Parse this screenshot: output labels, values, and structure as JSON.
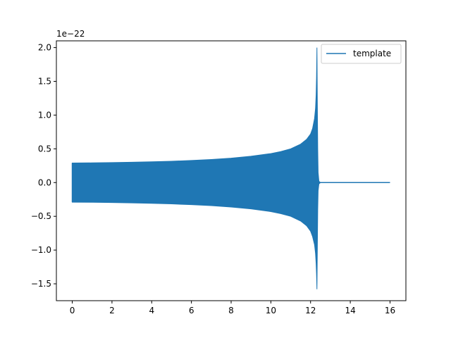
{
  "chart_data": {
    "type": "line",
    "title": "",
    "xlabel": "",
    "ylabel": "",
    "y_offset_label": "1e−22",
    "xlim": [
      -0.8,
      16.8
    ],
    "ylim": [
      -1.75,
      2.1
    ],
    "x_ticks": [
      {
        "value": 0,
        "label": "0"
      },
      {
        "value": 2,
        "label": "2"
      },
      {
        "value": 4,
        "label": "4"
      },
      {
        "value": 6,
        "label": "6"
      },
      {
        "value": 8,
        "label": "8"
      },
      {
        "value": 10,
        "label": "10"
      },
      {
        "value": 12,
        "label": "12"
      },
      {
        "value": 14,
        "label": "14"
      },
      {
        "value": 16,
        "label": "16"
      }
    ],
    "y_ticks": [
      {
        "value": -1.5,
        "label": "−1.5"
      },
      {
        "value": -1.0,
        "label": "−1.0"
      },
      {
        "value": -0.5,
        "label": "−0.5"
      },
      {
        "value": 0.0,
        "label": "0.0"
      },
      {
        "value": 0.5,
        "label": "0.5"
      },
      {
        "value": 1.0,
        "label": "1.0"
      },
      {
        "value": 1.5,
        "label": "1.5"
      },
      {
        "value": 2.0,
        "label": "2.0"
      }
    ],
    "grid": false,
    "legend_position": "top-right",
    "series": [
      {
        "name": "template",
        "color": "#1f77b4",
        "envelope_upper": [
          [
            0.0,
            0.29
          ],
          [
            1.0,
            0.292
          ],
          [
            2.0,
            0.296
          ],
          [
            3.0,
            0.301
          ],
          [
            4.0,
            0.308
          ],
          [
            5.0,
            0.316
          ],
          [
            6.0,
            0.327
          ],
          [
            7.0,
            0.342
          ],
          [
            8.0,
            0.362
          ],
          [
            9.0,
            0.39
          ],
          [
            10.0,
            0.43
          ],
          [
            10.5,
            0.46
          ],
          [
            11.0,
            0.5
          ],
          [
            11.5,
            0.57
          ],
          [
            11.8,
            0.64
          ],
          [
            12.0,
            0.72
          ],
          [
            12.1,
            0.8
          ],
          [
            12.2,
            0.95
          ],
          [
            12.25,
            1.1
          ],
          [
            12.28,
            1.3
          ],
          [
            12.3,
            1.55
          ],
          [
            12.32,
            2.0
          ],
          [
            12.34,
            1.2
          ],
          [
            12.36,
            0.5
          ],
          [
            12.38,
            0.15
          ],
          [
            12.42,
            0.02
          ],
          [
            12.5,
            0.0
          ]
        ],
        "envelope_lower": [
          [
            0.0,
            -0.29
          ],
          [
            1.0,
            -0.292
          ],
          [
            2.0,
            -0.296
          ],
          [
            3.0,
            -0.301
          ],
          [
            4.0,
            -0.308
          ],
          [
            5.0,
            -0.316
          ],
          [
            6.0,
            -0.327
          ],
          [
            7.0,
            -0.342
          ],
          [
            8.0,
            -0.362
          ],
          [
            9.0,
            -0.39
          ],
          [
            10.0,
            -0.43
          ],
          [
            10.5,
            -0.46
          ],
          [
            11.0,
            -0.5
          ],
          [
            11.5,
            -0.57
          ],
          [
            11.8,
            -0.64
          ],
          [
            12.0,
            -0.72
          ],
          [
            12.1,
            -0.8
          ],
          [
            12.2,
            -0.92
          ],
          [
            12.25,
            -1.05
          ],
          [
            12.28,
            -1.2
          ],
          [
            12.3,
            -1.35
          ],
          [
            12.32,
            -1.58
          ],
          [
            12.34,
            -1.0
          ],
          [
            12.36,
            -0.4
          ],
          [
            12.38,
            -0.12
          ],
          [
            12.42,
            -0.02
          ],
          [
            12.5,
            0.0
          ]
        ],
        "flat_segment": [
          [
            12.5,
            0.0
          ],
          [
            16.0,
            0.0
          ]
        ]
      }
    ]
  }
}
